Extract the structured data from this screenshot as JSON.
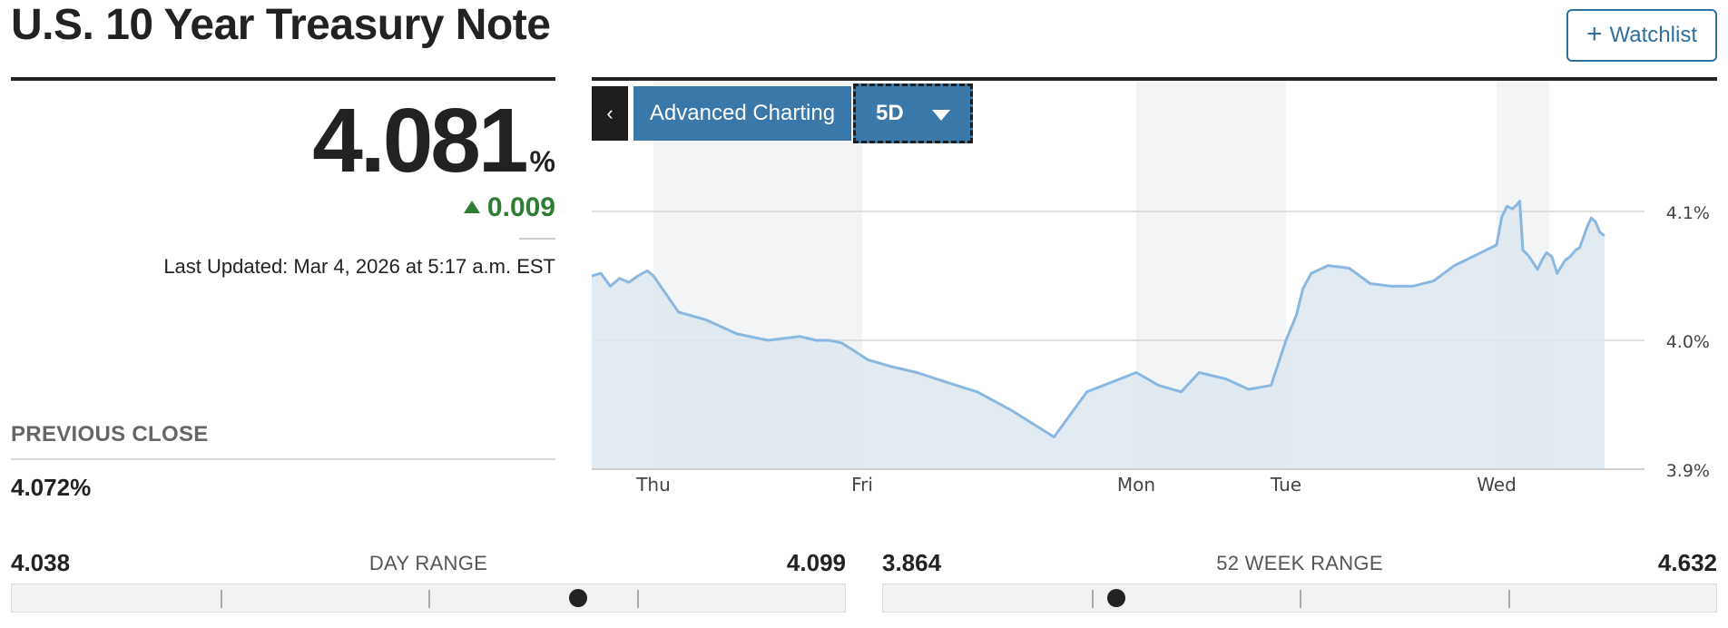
{
  "header": {
    "title": "U.S. 10 Year Treasury Note",
    "watchlist_label": "Watchlist"
  },
  "quote": {
    "price": "4.081",
    "unit": "%",
    "change": "0.009",
    "direction": "up",
    "last_updated": "Last Updated: Mar 4, 2026 at 5:17 a.m. EST"
  },
  "previous_close": {
    "label": "PREVIOUS CLOSE",
    "value": "4.072%"
  },
  "chart_controls": {
    "advanced_label": "Advanced Charting",
    "range_value": "5D"
  },
  "day_range": {
    "label": "DAY RANGE",
    "low": "4.038",
    "high": "4.099",
    "position": 0.68
  },
  "week52_range": {
    "label": "52 WEEK RANGE",
    "low": "3.864",
    "high": "4.632",
    "position": 0.28
  },
  "colors": {
    "accent": "#3a78aa",
    "positive": "#2e7d32",
    "line": "#8ab8e0",
    "area": "#dde6f0"
  },
  "chart_data": {
    "type": "area",
    "title": "",
    "xlabel": "",
    "ylabel": "",
    "ylim": [
      3.9,
      4.1
    ],
    "x_tick_labels": [
      "Thu",
      "Fri",
      "Mon",
      "Tue",
      "Wed"
    ],
    "y_tick_labels": [
      "4.1%",
      "4.0%",
      "3.9%"
    ],
    "y_ticks": [
      4.1,
      4.0,
      3.9
    ],
    "grid": true,
    "series": [
      {
        "x": [
          0,
          0.15,
          0.3,
          0.45,
          0.6,
          0.75,
          0.9,
          1.0,
          1.12,
          1.25,
          1.4,
          1.55,
          1.7,
          1.78,
          1.84,
          1.9,
          1.95,
          2.02,
          2.1,
          2.2,
          2.3,
          2.42,
          2.55,
          2.7,
          2.82,
          3.0,
          3.15,
          3.3,
          3.42,
          3.6,
          3.75,
          3.9,
          4.0,
          4.03,
          4.05,
          4.08,
          4.12,
          4.2,
          4.3,
          4.4,
          4.5,
          4.6,
          4.7,
          4.8,
          4.9,
          5.0,
          5.1,
          5.2,
          5.3,
          5.38,
          5.44,
          5.5,
          5.6,
          5.7,
          5.78,
          5.86,
          5.95,
          6.05,
          6.15,
          6.3,
          6.4,
          6.5,
          6.58,
          6.65,
          6.72,
          6.8,
          6.88,
          6.96,
          7.05
        ],
        "y": [
          4.05,
          4.052,
          4.042,
          4.048,
          4.045,
          4.05,
          4.054,
          4.05,
          4.022,
          4.016,
          4.005,
          4.0,
          4.003,
          4.0,
          4.0,
          3.998,
          3.993,
          3.985,
          3.98,
          3.975,
          3.968,
          3.96,
          3.945,
          3.925,
          3.96,
          3.975,
          3.965,
          3.96,
          3.975,
          3.97,
          3.962,
          3.965,
          4.0,
          4.012,
          4.02,
          4.04,
          4.052,
          4.058,
          4.056,
          4.044,
          4.042,
          4.042,
          4.046,
          4.058,
          4.066,
          4.074,
          4.096,
          4.104,
          4.102,
          4.105,
          4.108,
          4.07,
          4.066,
          4.06,
          4.055,
          4.062,
          4.068,
          4.065,
          4.052,
          4.062,
          4.065,
          4.07,
          4.072,
          4.08,
          4.088,
          4.095,
          4.092,
          4.084,
          4.081
        ]
      }
    ]
  }
}
